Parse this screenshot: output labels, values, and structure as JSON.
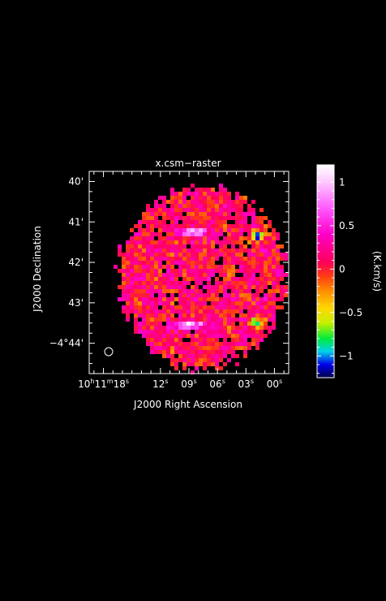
{
  "chart_data": {
    "type": "heatmap",
    "title": "x.csm−raster",
    "xlabel": "J2000 Right Ascension",
    "ylabel": "J2000 Declination",
    "colorbar_label": "(K.km/s)",
    "x_ticks": [
      {
        "label_parts": [
          {
            "t": "10"
          },
          {
            "t": "h",
            "sup": true
          },
          {
            "t": "11"
          },
          {
            "t": "m",
            "sup": true
          },
          {
            "t": "18"
          },
          {
            "t": "s",
            "sup": true
          }
        ],
        "sec": 18
      },
      {
        "label_parts": [
          {
            "t": "12"
          },
          {
            "t": "s",
            "sup": true
          }
        ],
        "sec": 12
      },
      {
        "label_parts": [
          {
            "t": "09"
          },
          {
            "t": "s",
            "sup": true
          }
        ],
        "sec": 9
      },
      {
        "label_parts": [
          {
            "t": "06"
          },
          {
            "t": "s",
            "sup": true
          }
        ],
        "sec": 6
      },
      {
        "label_parts": [
          {
            "t": "03"
          },
          {
            "t": "s",
            "sup": true
          }
        ],
        "sec": 3
      },
      {
        "label_parts": [
          {
            "t": "00"
          },
          {
            "t": "s",
            "sup": true
          }
        ],
        "sec": 0
      }
    ],
    "y_ticks": [
      {
        "label": "40'",
        "min": 40
      },
      {
        "label": "41'",
        "min": 41
      },
      {
        "label": "42'",
        "min": 42
      },
      {
        "label": "43'",
        "min": 43
      },
      {
        "label": "−4°44'",
        "min": 44
      }
    ],
    "colorbar_ticks": [
      {
        "label": "1",
        "value": 1
      },
      {
        "label": "0.5",
        "value": 0.5
      },
      {
        "label": "0",
        "value": 0
      },
      {
        "label": "−0.5",
        "value": -0.5
      },
      {
        "label": "−1",
        "value": -1
      }
    ],
    "colorbar_range": [
      -1.25,
      1.2
    ],
    "x_range_sec": [
      19.5,
      -1.5
    ],
    "y_range_arcmin": [
      39.75,
      44.75
    ],
    "grid": false,
    "features": [
      {
        "kind": "peak",
        "ra_sec": 8.6,
        "dec_arcmin": 41.25,
        "value": 1.05
      },
      {
        "kind": "peak",
        "ra_sec": 8.8,
        "dec_arcmin": 43.55,
        "value": 1.05
      },
      {
        "kind": "trough",
        "ra_sec": 1.8,
        "dec_arcmin": 41.35,
        "value": -1.2
      },
      {
        "kind": "trough",
        "ra_sec": 2.0,
        "dec_arcmin": 43.5,
        "value": -1.0
      }
    ],
    "beam": {
      "shape": "circle",
      "position": "bottom-left"
    }
  }
}
